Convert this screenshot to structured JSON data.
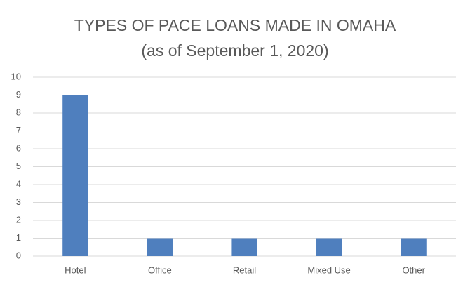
{
  "chart_data": {
    "type": "bar",
    "title": "TYPES OF PACE LOANS MADE IN OMAHA",
    "subtitle": "(as of September 1, 2020)",
    "categories": [
      "Hotel",
      "Office",
      "Retail",
      "Mixed Use",
      "Other"
    ],
    "values": [
      9,
      1,
      1,
      1,
      1
    ],
    "color": "#4f7fbe",
    "ylim": [
      0,
      10
    ],
    "yticks": [
      0,
      1,
      2,
      3,
      4,
      5,
      6,
      7,
      8,
      9,
      10
    ],
    "grid": true
  }
}
